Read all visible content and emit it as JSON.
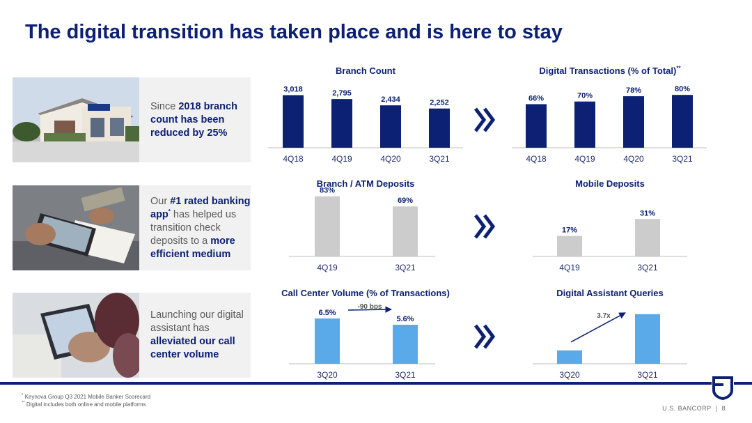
{
  "title": "The digital transition has taken place and is here to stay",
  "rows": [
    {
      "photo_icon": "bank-branch-photo-icon",
      "caption": [
        "Since ",
        "2018 branch count has been reduced by 25%"
      ]
    },
    {
      "photo_icon": "mobile-check-deposit-photo-icon",
      "caption": [
        "Our ",
        "#1 rated banking app",
        "*",
        " has helped us transition check deposits to a ",
        "more efficient medium"
      ]
    },
    {
      "photo_icon": "mobile-assistant-photo-icon",
      "caption": [
        "Launching our digital assistant has ",
        "alleviated our call center volume"
      ]
    }
  ],
  "chart_data": [
    {
      "id": "branch-count",
      "type": "bar",
      "title": "Branch Count",
      "title_marker": "",
      "categories": [
        "4Q18",
        "4Q19",
        "4Q20",
        "3Q21"
      ],
      "values": [
        3018,
        2795,
        2434,
        2252
      ],
      "labels": [
        "3,018",
        "2,795",
        "2,434",
        "2,252"
      ],
      "color": "#0c2074",
      "ylim": [
        0,
        3600
      ]
    },
    {
      "id": "digital-transactions",
      "type": "bar",
      "title": "Digital Transactions (% of Total)",
      "title_marker": "**",
      "categories": [
        "4Q18",
        "4Q19",
        "4Q20",
        "3Q21"
      ],
      "values": [
        66,
        70,
        78,
        80
      ],
      "labels": [
        "66%",
        "70%",
        "78%",
        "80%"
      ],
      "color": "#0c2074",
      "ylim": [
        0,
        95
      ]
    },
    {
      "id": "branch-atm-deposits",
      "type": "bar",
      "title": "Branch / ATM Deposits",
      "title_marker": "",
      "categories": [
        "4Q19",
        "3Q21"
      ],
      "values": [
        83,
        69
      ],
      "labels": [
        "83%",
        "69%"
      ],
      "color": "#cccccc",
      "ylim": [
        0,
        100
      ]
    },
    {
      "id": "mobile-deposits",
      "type": "bar",
      "title": "Mobile Deposits",
      "title_marker": "",
      "categories": [
        "4Q19",
        "3Q21"
      ],
      "values": [
        17,
        31
      ],
      "labels": [
        "17%",
        "31%"
      ],
      "color": "#cccccc",
      "ylim": [
        0,
        60
      ]
    },
    {
      "id": "call-center-volume",
      "type": "bar",
      "title": "Call Center Volume (% of Transactions)",
      "title_marker": "",
      "categories": [
        "3Q20",
        "3Q21"
      ],
      "values": [
        6.5,
        5.6
      ],
      "labels": [
        "6.5%",
        "5.6%"
      ],
      "color": "#5aa9e8",
      "ylim": [
        0,
        8.2
      ],
      "annotation": "-90 bps"
    },
    {
      "id": "digital-assistant-queries",
      "type": "bar",
      "title": "Digital Assistant Queries",
      "title_marker": "",
      "categories": [
        "3Q20",
        "3Q21"
      ],
      "values": [
        1,
        3.7
      ],
      "labels": [
        "",
        ""
      ],
      "color": "#5aa9e8",
      "ylim": [
        0,
        3.9
      ],
      "annotation": "3.7x"
    }
  ],
  "footnotes": [
    {
      "marker": "*",
      "text": " Keynova Group Q3 2021 Mobile Banker Scorecard"
    },
    {
      "marker": "**",
      "text": " Digital includes both online and mobile platforms"
    }
  ],
  "brand": "U.S. BANCORP",
  "separator": "|",
  "page_number": "8",
  "colors": {
    "navy": "#0c2074",
    "gray_bar": "#cccccc",
    "blue_bar": "#5aa9e8"
  }
}
